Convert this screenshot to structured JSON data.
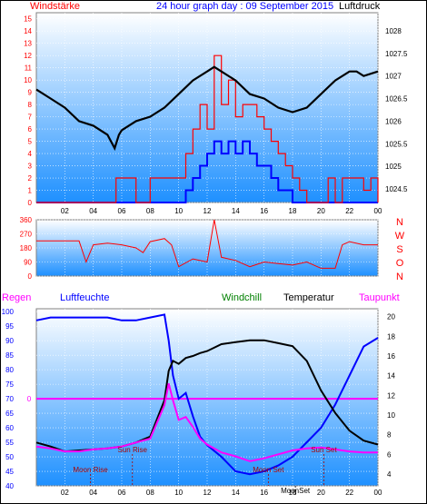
{
  "header": {
    "left_label": "Windstärke",
    "center_label": "24 hour graph day : 09 September 2015",
    "right_label": "Luftdruck"
  },
  "bottom_header": {
    "regen": "Regen",
    "luftfeuchte": "Luftfeuchte",
    "windchill": "Windchill",
    "temperatur": "Temperatur",
    "taupunkt": "Taupunkt"
  },
  "colors": {
    "wind": "#ff0000",
    "gust": "#0000ff",
    "pressure": "#000000",
    "direction": "#ff0000",
    "humidity": "#0000ff",
    "temperature": "#000000",
    "dewpoint": "#ff00ff",
    "rain": "#ff00ff",
    "windchill": "#008000",
    "grid": "#ffffff",
    "bg_top": "#ffffff",
    "bg_bottom": "#1e90ff"
  },
  "events": [
    {
      "label": "Sun Rise",
      "x": 6.75
    },
    {
      "label": "Sun Set",
      "x": 20.2
    },
    {
      "label": "Moon Rise",
      "x": 3.8
    },
    {
      "label": "Moon Set",
      "x": 16.3
    },
    {
      "label": "MoonSet",
      "x": 18.2
    }
  ],
  "chart_data": [
    {
      "type": "line",
      "name": "wind_pressure",
      "x_ticks": [
        "02",
        "04",
        "06",
        "08",
        "10",
        "12",
        "14",
        "16",
        "18",
        "20",
        "22",
        "00"
      ],
      "y_left_ticks": [
        0,
        1,
        2,
        3,
        4,
        5,
        6,
        7,
        8,
        9,
        10,
        11,
        12,
        13,
        14,
        15
      ],
      "y_right_ticks": [
        1024.5,
        1025,
        1025.5,
        1026,
        1026.5,
        1027,
        1027.5,
        1028
      ],
      "xlim": [
        0,
        24
      ],
      "ylim_left": [
        0,
        15.5
      ],
      "ylim_right": [
        1024.2,
        1028.4
      ],
      "pressure": {
        "x": [
          0,
          1,
          2,
          3,
          4,
          5,
          5.5,
          5.8,
          6,
          6.5,
          7,
          8,
          9,
          10,
          11,
          12,
          12.5,
          13,
          14,
          15,
          16,
          17,
          18,
          19,
          20,
          21,
          22,
          22.5,
          23,
          24
        ],
        "y": [
          1026.7,
          1026.5,
          1026.3,
          1026.0,
          1025.9,
          1025.7,
          1025.4,
          1025.7,
          1025.8,
          1025.9,
          1026.0,
          1026.1,
          1026.3,
          1026.6,
          1026.9,
          1027.1,
          1027.2,
          1027.1,
          1026.9,
          1026.6,
          1026.5,
          1026.3,
          1026.2,
          1026.3,
          1026.6,
          1026.9,
          1027.1,
          1027.1,
          1027.0,
          1027.1
        ]
      },
      "wind": {
        "x": [
          0,
          5.4,
          5.6,
          6.5,
          7,
          8,
          9,
          10,
          10.5,
          11,
          11.5,
          12,
          12.5,
          13,
          13.5,
          14,
          14.5,
          15,
          15.5,
          16,
          16.5,
          17,
          17.5,
          18,
          18.5,
          19,
          19.5,
          20,
          20.5,
          21,
          21.5,
          22,
          22.5,
          23,
          23.5,
          24
        ],
        "y": [
          0,
          0,
          2,
          2,
          0,
          2,
          2,
          2,
          4,
          6,
          8,
          6,
          12,
          8,
          10,
          7,
          8,
          8,
          7,
          6,
          5,
          4,
          3,
          2,
          1,
          0,
          0,
          0,
          2,
          0,
          2,
          2,
          2,
          1,
          2,
          0
        ]
      },
      "gust": {
        "x": [
          0,
          10,
          10.5,
          11,
          11.5,
          12,
          12.5,
          13,
          13.5,
          14,
          14.5,
          15,
          15.5,
          16,
          16.5,
          17,
          17.5,
          18,
          24
        ],
        "y": [
          0,
          0,
          1,
          2,
          3,
          4,
          5,
          4,
          5,
          4,
          5,
          4,
          3,
          3,
          2,
          1,
          1,
          0,
          0
        ]
      }
    },
    {
      "type": "line",
      "name": "wind_direction",
      "x_ticks": [
        "02",
        "04",
        "06",
        "08",
        "10",
        "12",
        "14",
        "16",
        "18",
        "20",
        "22",
        "00"
      ],
      "y_ticks": [
        0,
        90,
        180,
        270,
        360
      ],
      "y_right_labels": [
        "N",
        "W",
        "S",
        "O",
        "N"
      ],
      "xlim": [
        0,
        24
      ],
      "ylim": [
        0,
        360
      ],
      "x": [
        0,
        1,
        2,
        3,
        3.5,
        4,
        5,
        6,
        7,
        7.5,
        8,
        9,
        9.5,
        10,
        11,
        12,
        12.5,
        13,
        14,
        15,
        16,
        17,
        18,
        19,
        20,
        21,
        21.5,
        22,
        23,
        24
      ],
      "y": [
        225,
        225,
        225,
        225,
        90,
        200,
        210,
        200,
        180,
        150,
        220,
        240,
        200,
        60,
        110,
        90,
        360,
        120,
        100,
        60,
        90,
        80,
        70,
        90,
        50,
        50,
        200,
        220,
        200,
        200
      ]
    },
    {
      "type": "line",
      "name": "temperature_humidity",
      "x_ticks": [
        "02",
        "04",
        "06",
        "08",
        "10",
        "12",
        "14",
        "16",
        "18",
        "20",
        "22",
        "00"
      ],
      "y_left_ticks": [
        40,
        45,
        50,
        55,
        60,
        65,
        70,
        75,
        80,
        85,
        90,
        95,
        100
      ],
      "y_right_ticks": [
        4,
        6,
        8,
        10,
        12,
        14,
        16,
        18,
        20
      ],
      "xlim": [
        0,
        24
      ],
      "ylim_left": [
        40,
        101
      ],
      "ylim_right": [
        2.8,
        20.8
      ],
      "rain_label": "0",
      "rain_value": 0,
      "humidity": {
        "x": [
          0,
          1,
          2,
          3,
          4,
          5,
          6,
          7,
          8,
          9,
          9.3,
          9.6,
          10,
          10.5,
          11,
          11.5,
          12,
          13,
          14,
          15,
          16,
          17,
          18,
          19,
          20,
          21,
          22,
          23,
          24
        ],
        "y": [
          97,
          98,
          98,
          98,
          98,
          98,
          97,
          97,
          98,
          99,
          90,
          78,
          70,
          72,
          64,
          57,
          54,
          50,
          45,
          44,
          45,
          47,
          50,
          55,
          60,
          68,
          78,
          88,
          91
        ]
      },
      "temperature": {
        "x": [
          0,
          1,
          2,
          3,
          4,
          5,
          6,
          7,
          8,
          9,
          9.3,
          9.6,
          10,
          10.5,
          11,
          11.5,
          12,
          13,
          14,
          15,
          16,
          17,
          18,
          19,
          20,
          21,
          22,
          23,
          24
        ],
        "y": [
          7.2,
          6.8,
          6.3,
          6.4,
          6.5,
          6.6,
          6.8,
          7.2,
          7.8,
          11.5,
          14.5,
          15.5,
          15.2,
          15.8,
          16.0,
          16.3,
          16.5,
          17.2,
          17.4,
          17.6,
          17.6,
          17.3,
          17.0,
          15.5,
          12.5,
          10.2,
          8.4,
          7.4,
          7.0
        ]
      },
      "dewpoint": {
        "x": [
          0,
          1,
          2,
          3,
          4,
          5,
          6,
          7,
          8,
          9,
          9.3,
          9.6,
          10,
          10.5,
          11,
          11.5,
          12,
          13,
          14,
          15,
          16,
          17,
          18,
          19,
          20,
          21,
          22,
          23,
          24
        ],
        "y": [
          6.8,
          6.6,
          6.3,
          6.3,
          6.5,
          6.6,
          6.8,
          7.2,
          7.6,
          11.0,
          13.2,
          11.5,
          9.5,
          9.8,
          8.8,
          7.6,
          7.0,
          6.2,
          5.8,
          5.3,
          5.6,
          6.0,
          6.4,
          6.6,
          6.7,
          6.5,
          6.3,
          6.2,
          6.2
        ]
      }
    }
  ]
}
